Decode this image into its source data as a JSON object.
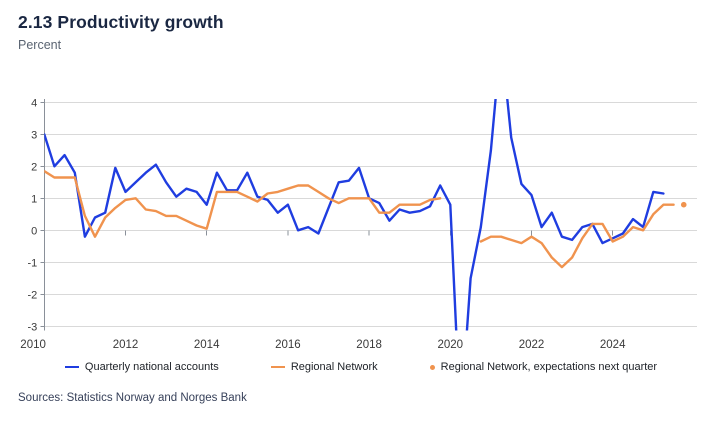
{
  "header": {
    "title": "2.13 Productivity growth",
    "subtitle": "Percent"
  },
  "footer": {
    "sources": "Sources: Statistics Norway and Norges Bank"
  },
  "colors": {
    "blue": "#1f3de0",
    "orange": "#f0934e",
    "grid": "#d9d9d9",
    "axis": "#8a9099",
    "tick_label": "#3a3a3a"
  },
  "chart_data": {
    "type": "line",
    "title": "2.13 Productivity growth",
    "ylabel": "Percent",
    "ylim": [
      -3,
      4
    ],
    "yticks": [
      4,
      3,
      2,
      1,
      0,
      -1,
      -2,
      -3
    ],
    "xticks": [
      2010,
      2012,
      2014,
      2016,
      2018,
      2020,
      2022,
      2024
    ],
    "grid": true,
    "legend_position": "bottom",
    "note": "Blue series clipped above 4 in 2021 and below -3 in 2020; orange series has a data gap during 2020; values in percent, quarterly.",
    "series": [
      {
        "name": "Quarterly national accounts",
        "color": "#1f3de0",
        "style": "line",
        "points": [
          [
            2010.0,
            3.0
          ],
          [
            2010.25,
            2.0
          ],
          [
            2010.5,
            2.35
          ],
          [
            2010.75,
            1.8
          ],
          [
            2011.0,
            -0.2
          ],
          [
            2011.25,
            0.4
          ],
          [
            2011.5,
            0.55
          ],
          [
            2011.75,
            1.95
          ],
          [
            2012.0,
            1.2
          ],
          [
            2012.25,
            1.5
          ],
          [
            2012.5,
            1.8
          ],
          [
            2012.75,
            2.05
          ],
          [
            2013.0,
            1.5
          ],
          [
            2013.25,
            1.05
          ],
          [
            2013.5,
            1.3
          ],
          [
            2013.75,
            1.2
          ],
          [
            2014.0,
            0.8
          ],
          [
            2014.25,
            1.8
          ],
          [
            2014.5,
            1.25
          ],
          [
            2014.75,
            1.25
          ],
          [
            2015.0,
            1.8
          ],
          [
            2015.25,
            1.05
          ],
          [
            2015.5,
            0.95
          ],
          [
            2015.75,
            0.55
          ],
          [
            2016.0,
            0.8
          ],
          [
            2016.25,
            0.0
          ],
          [
            2016.5,
            0.1
          ],
          [
            2016.75,
            -0.1
          ],
          [
            2017.0,
            0.7
          ],
          [
            2017.25,
            1.5
          ],
          [
            2017.5,
            1.55
          ],
          [
            2017.75,
            1.95
          ],
          [
            2018.0,
            1.0
          ],
          [
            2018.25,
            0.85
          ],
          [
            2018.5,
            0.3
          ],
          [
            2018.75,
            0.65
          ],
          [
            2019.0,
            0.55
          ],
          [
            2019.25,
            0.6
          ],
          [
            2019.5,
            0.75
          ],
          [
            2019.75,
            1.4
          ],
          [
            2020.0,
            0.8
          ],
          [
            2020.25,
            -6.0
          ],
          [
            2020.5,
            -1.5
          ],
          [
            2020.75,
            0.1
          ],
          [
            2021.0,
            2.5
          ],
          [
            2021.25,
            6.0
          ],
          [
            2021.5,
            2.9
          ],
          [
            2021.75,
            1.45
          ],
          [
            2022.0,
            1.1
          ],
          [
            2022.25,
            0.1
          ],
          [
            2022.5,
            0.55
          ],
          [
            2022.75,
            -0.2
          ],
          [
            2023.0,
            -0.3
          ],
          [
            2023.25,
            0.1
          ],
          [
            2023.5,
            0.2
          ],
          [
            2023.75,
            -0.4
          ],
          [
            2024.0,
            -0.25
          ],
          [
            2024.25,
            -0.1
          ],
          [
            2024.5,
            0.35
          ],
          [
            2024.75,
            0.1
          ],
          [
            2025.0,
            1.2
          ],
          [
            2025.25,
            1.15
          ]
        ]
      },
      {
        "name": "Regional Network",
        "color": "#f0934e",
        "style": "line",
        "segments": [
          [
            [
              2010.0,
              1.85
            ],
            [
              2010.25,
              1.65
            ],
            [
              2010.5,
              1.65
            ],
            [
              2010.75,
              1.65
            ],
            [
              2011.0,
              0.45
            ],
            [
              2011.25,
              -0.2
            ],
            [
              2011.5,
              0.4
            ],
            [
              2011.75,
              0.7
            ],
            [
              2012.0,
              0.95
            ],
            [
              2012.25,
              1.0
            ],
            [
              2012.5,
              0.65
            ],
            [
              2012.75,
              0.6
            ],
            [
              2013.0,
              0.45
            ],
            [
              2013.25,
              0.45
            ],
            [
              2013.5,
              0.3
            ],
            [
              2013.75,
              0.15
            ],
            [
              2014.0,
              0.05
            ],
            [
              2014.25,
              1.2
            ],
            [
              2014.5,
              1.2
            ],
            [
              2014.75,
              1.2
            ],
            [
              2015.0,
              1.05
            ],
            [
              2015.25,
              0.9
            ],
            [
              2015.5,
              1.15
            ],
            [
              2015.75,
              1.2
            ],
            [
              2016.0,
              1.3
            ],
            [
              2016.25,
              1.4
            ],
            [
              2016.5,
              1.4
            ],
            [
              2016.75,
              1.2
            ],
            [
              2017.0,
              1.0
            ],
            [
              2017.25,
              0.85
            ],
            [
              2017.5,
              1.0
            ],
            [
              2017.75,
              1.0
            ],
            [
              2018.0,
              1.0
            ],
            [
              2018.25,
              0.55
            ],
            [
              2018.5,
              0.55
            ],
            [
              2018.75,
              0.8
            ],
            [
              2019.0,
              0.8
            ],
            [
              2019.25,
              0.8
            ],
            [
              2019.5,
              0.95
            ],
            [
              2019.75,
              1.0
            ]
          ],
          [
            [
              2020.75,
              -0.35
            ],
            [
              2021.0,
              -0.2
            ],
            [
              2021.25,
              -0.2
            ],
            [
              2021.5,
              -0.3
            ],
            [
              2021.75,
              -0.4
            ],
            [
              2022.0,
              -0.2
            ],
            [
              2022.25,
              -0.4
            ],
            [
              2022.5,
              -0.85
            ],
            [
              2022.75,
              -1.15
            ],
            [
              2023.0,
              -0.85
            ],
            [
              2023.25,
              -0.25
            ],
            [
              2023.5,
              0.2
            ],
            [
              2023.75,
              0.2
            ],
            [
              2024.0,
              -0.35
            ],
            [
              2024.25,
              -0.2
            ],
            [
              2024.5,
              0.1
            ],
            [
              2024.75,
              0.0
            ],
            [
              2025.0,
              0.5
            ],
            [
              2025.25,
              0.8
            ],
            [
              2025.5,
              0.8
            ]
          ]
        ]
      },
      {
        "name": "Regional Network, expectations next quarter",
        "color": "#f0934e",
        "style": "dot",
        "points": [
          [
            2025.75,
            0.8
          ]
        ]
      }
    ]
  }
}
